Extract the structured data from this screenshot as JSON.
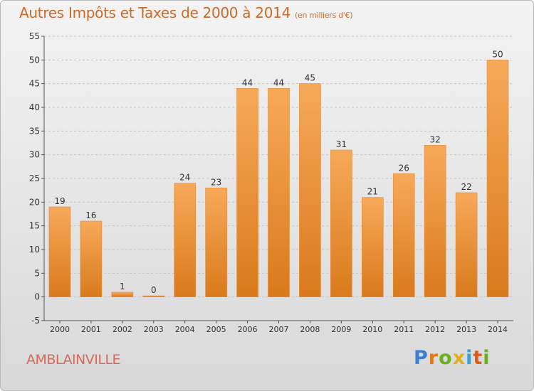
{
  "title": "Autres Impôts et Taxes de 2000 à 2014",
  "subtitle": "(en milliers d'€)",
  "commune": "AMBLAINVILLE",
  "brand": {
    "letters": [
      "P",
      "r",
      "o",
      "x",
      "i",
      "t",
      "i"
    ],
    "colors": [
      "#3a7fd0",
      "#e07a1a",
      "#6ab023",
      "#e0b21a",
      "#3a9fd0",
      "#e05a1a",
      "#6ab023"
    ]
  },
  "colors": {
    "bar_light": "#f7a95a",
    "bar_dark": "#d97a1c",
    "title": "#cc6a28",
    "commune": "#d86a5a"
  },
  "chart_data": {
    "type": "bar",
    "categories": [
      "2000",
      "2001",
      "2002",
      "2003",
      "2004",
      "2005",
      "2006",
      "2007",
      "2008",
      "2009",
      "2010",
      "2011",
      "2012",
      "2013",
      "2014"
    ],
    "values": [
      19,
      16,
      1,
      0,
      24,
      23,
      44,
      44,
      45,
      31,
      21,
      26,
      32,
      22,
      50
    ],
    "ylim": [
      -5,
      55
    ],
    "yticks": [
      -5,
      0,
      5,
      10,
      15,
      20,
      25,
      30,
      35,
      40,
      45,
      50,
      55
    ],
    "grid": true
  }
}
